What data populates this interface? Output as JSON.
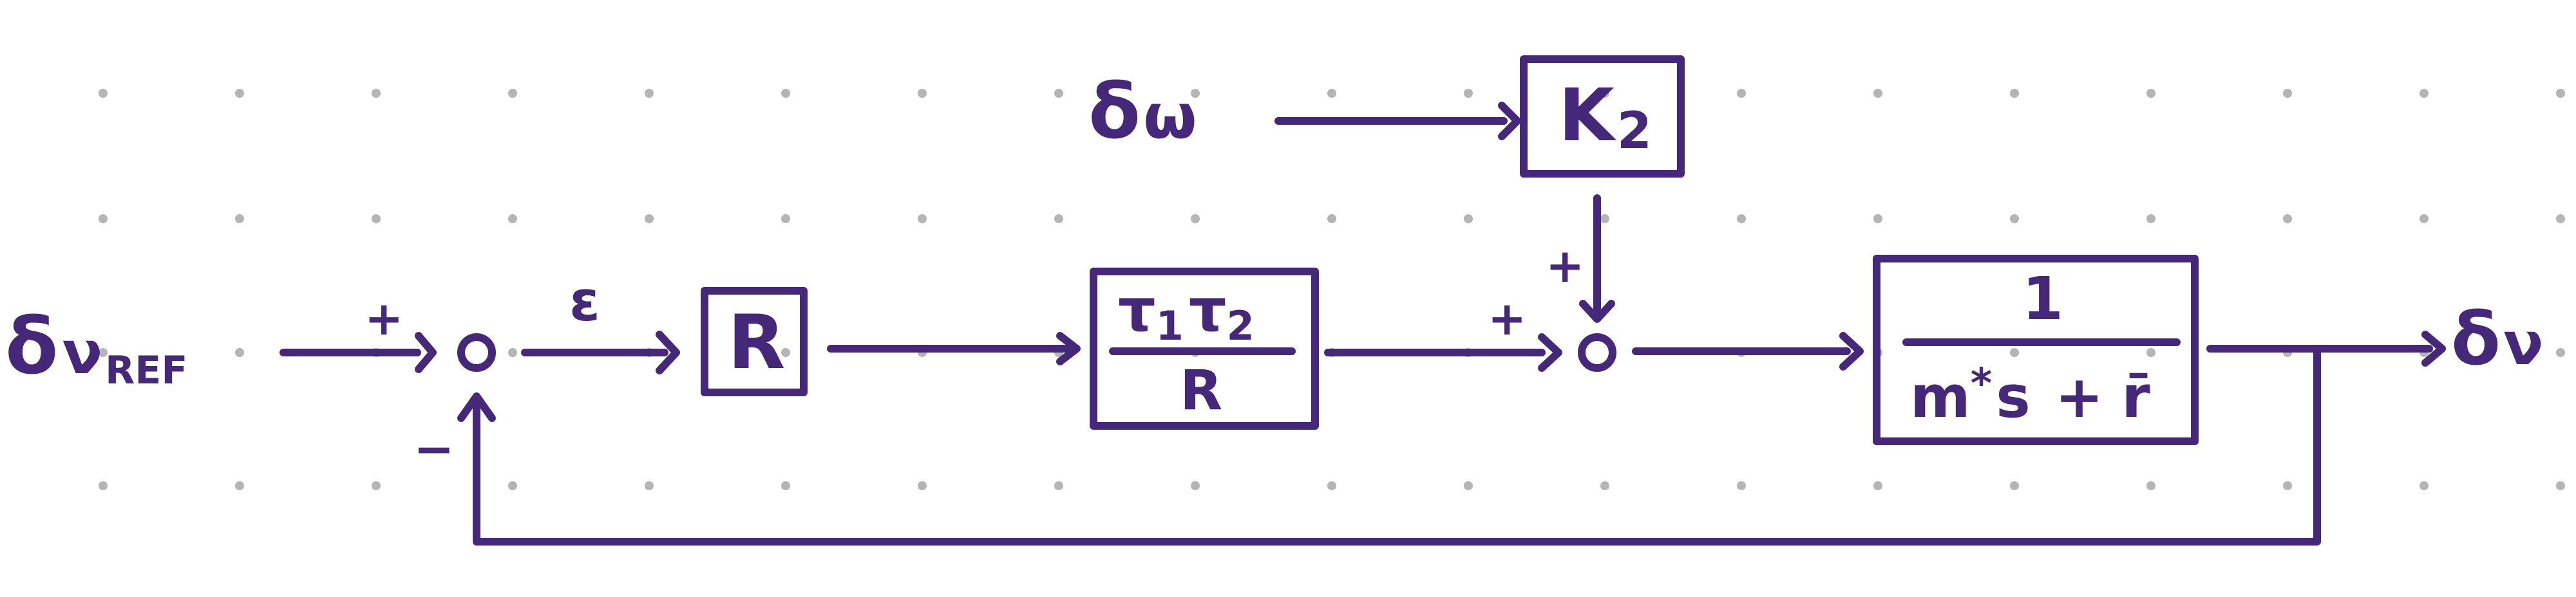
{
  "colors": {
    "ink": "#46287a",
    "grid_dot": "#b5b5b5",
    "background": "#ffffff"
  },
  "signals": {
    "input": {
      "base": "δ",
      "main": "ν",
      "sub": "REF"
    },
    "disturbance": {
      "base": "δ",
      "main": "ω",
      "sub": ""
    },
    "output": {
      "base": "δ",
      "main": "ν",
      "sub": ""
    },
    "error": "ε"
  },
  "blocks": {
    "gain_k2": {
      "label": "K",
      "sub": "2"
    },
    "gain_r": {
      "label": "R"
    },
    "tau": {
      "num_a": "τ",
      "num_a_sub": "1",
      "num_b": "τ",
      "num_b_sub": "2",
      "denominator": "R"
    },
    "plant": {
      "numerator": "1",
      "den_m": "m",
      "den_star": "*",
      "den_s": "s",
      "den_plus": "+",
      "den_r": "r̄"
    }
  },
  "signs": {
    "sum1_in": "+",
    "sum1_feedback": "−",
    "sum2_in": "+",
    "sum2_top": "+"
  }
}
